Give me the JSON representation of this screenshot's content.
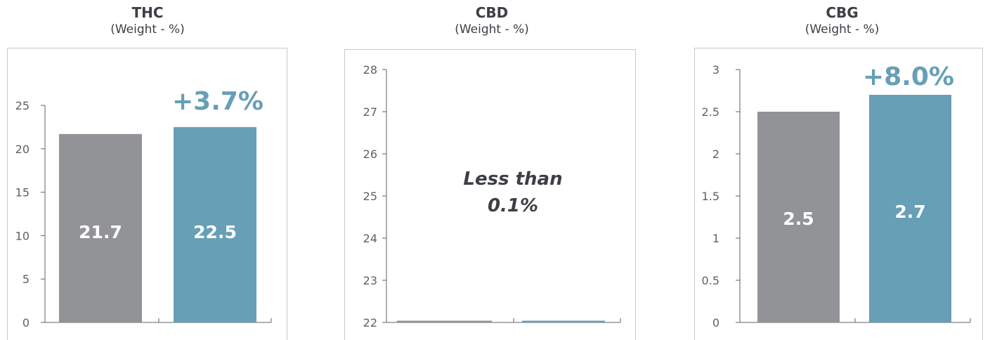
{
  "colors": {
    "baseline": "#929396",
    "improved": "#679fb6",
    "text": "#3c3f45",
    "axis": "#5f6168",
    "frame": "#c9c9cc"
  },
  "chart_data": [
    {
      "type": "bar",
      "title": "THC",
      "subtitle": "(Weight - %)",
      "categories": [
        "",
        ""
      ],
      "values": [
        21.7,
        22.5
      ],
      "value_labels": [
        "21.7",
        "22.5"
      ],
      "bar_colors": [
        "#929396",
        "#679fb6"
      ],
      "ylim": [
        0,
        25
      ],
      "yticks": [
        0,
        5,
        10,
        15,
        20,
        25
      ],
      "ytick_labels": [
        "0",
        "5",
        "10",
        "15",
        "20",
        "25"
      ],
      "change_label": "+3.7%"
    },
    {
      "type": "bar",
      "title": "CBD",
      "subtitle": "(Weight - %)",
      "categories": [
        "",
        ""
      ],
      "values": [
        22,
        22
      ],
      "value_labels": [
        "",
        ""
      ],
      "bar_colors": [
        "#929396",
        "#679fb6"
      ],
      "ylim": [
        22,
        28
      ],
      "yticks": [
        22,
        23,
        24,
        25,
        26,
        27,
        28
      ],
      "ytick_labels": [
        "22",
        "23",
        "24",
        "25",
        "26",
        "27",
        "28"
      ],
      "annotation_lines": [
        "Less than",
        "0.1%"
      ]
    },
    {
      "type": "bar",
      "title": "CBG",
      "subtitle": "(Weight - %)",
      "categories": [
        "",
        ""
      ],
      "values": [
        2.5,
        2.7
      ],
      "value_labels": [
        "2.5",
        "2.7"
      ],
      "bar_colors": [
        "#929396",
        "#679fb6"
      ],
      "ylim": [
        0,
        3
      ],
      "yticks": [
        0,
        0.5,
        1,
        1.5,
        2,
        2.5,
        3
      ],
      "ytick_labels": [
        "0",
        "0.5",
        "1",
        "1.5",
        "2",
        "2.5",
        "3"
      ],
      "change_label": "+8.0%"
    }
  ]
}
